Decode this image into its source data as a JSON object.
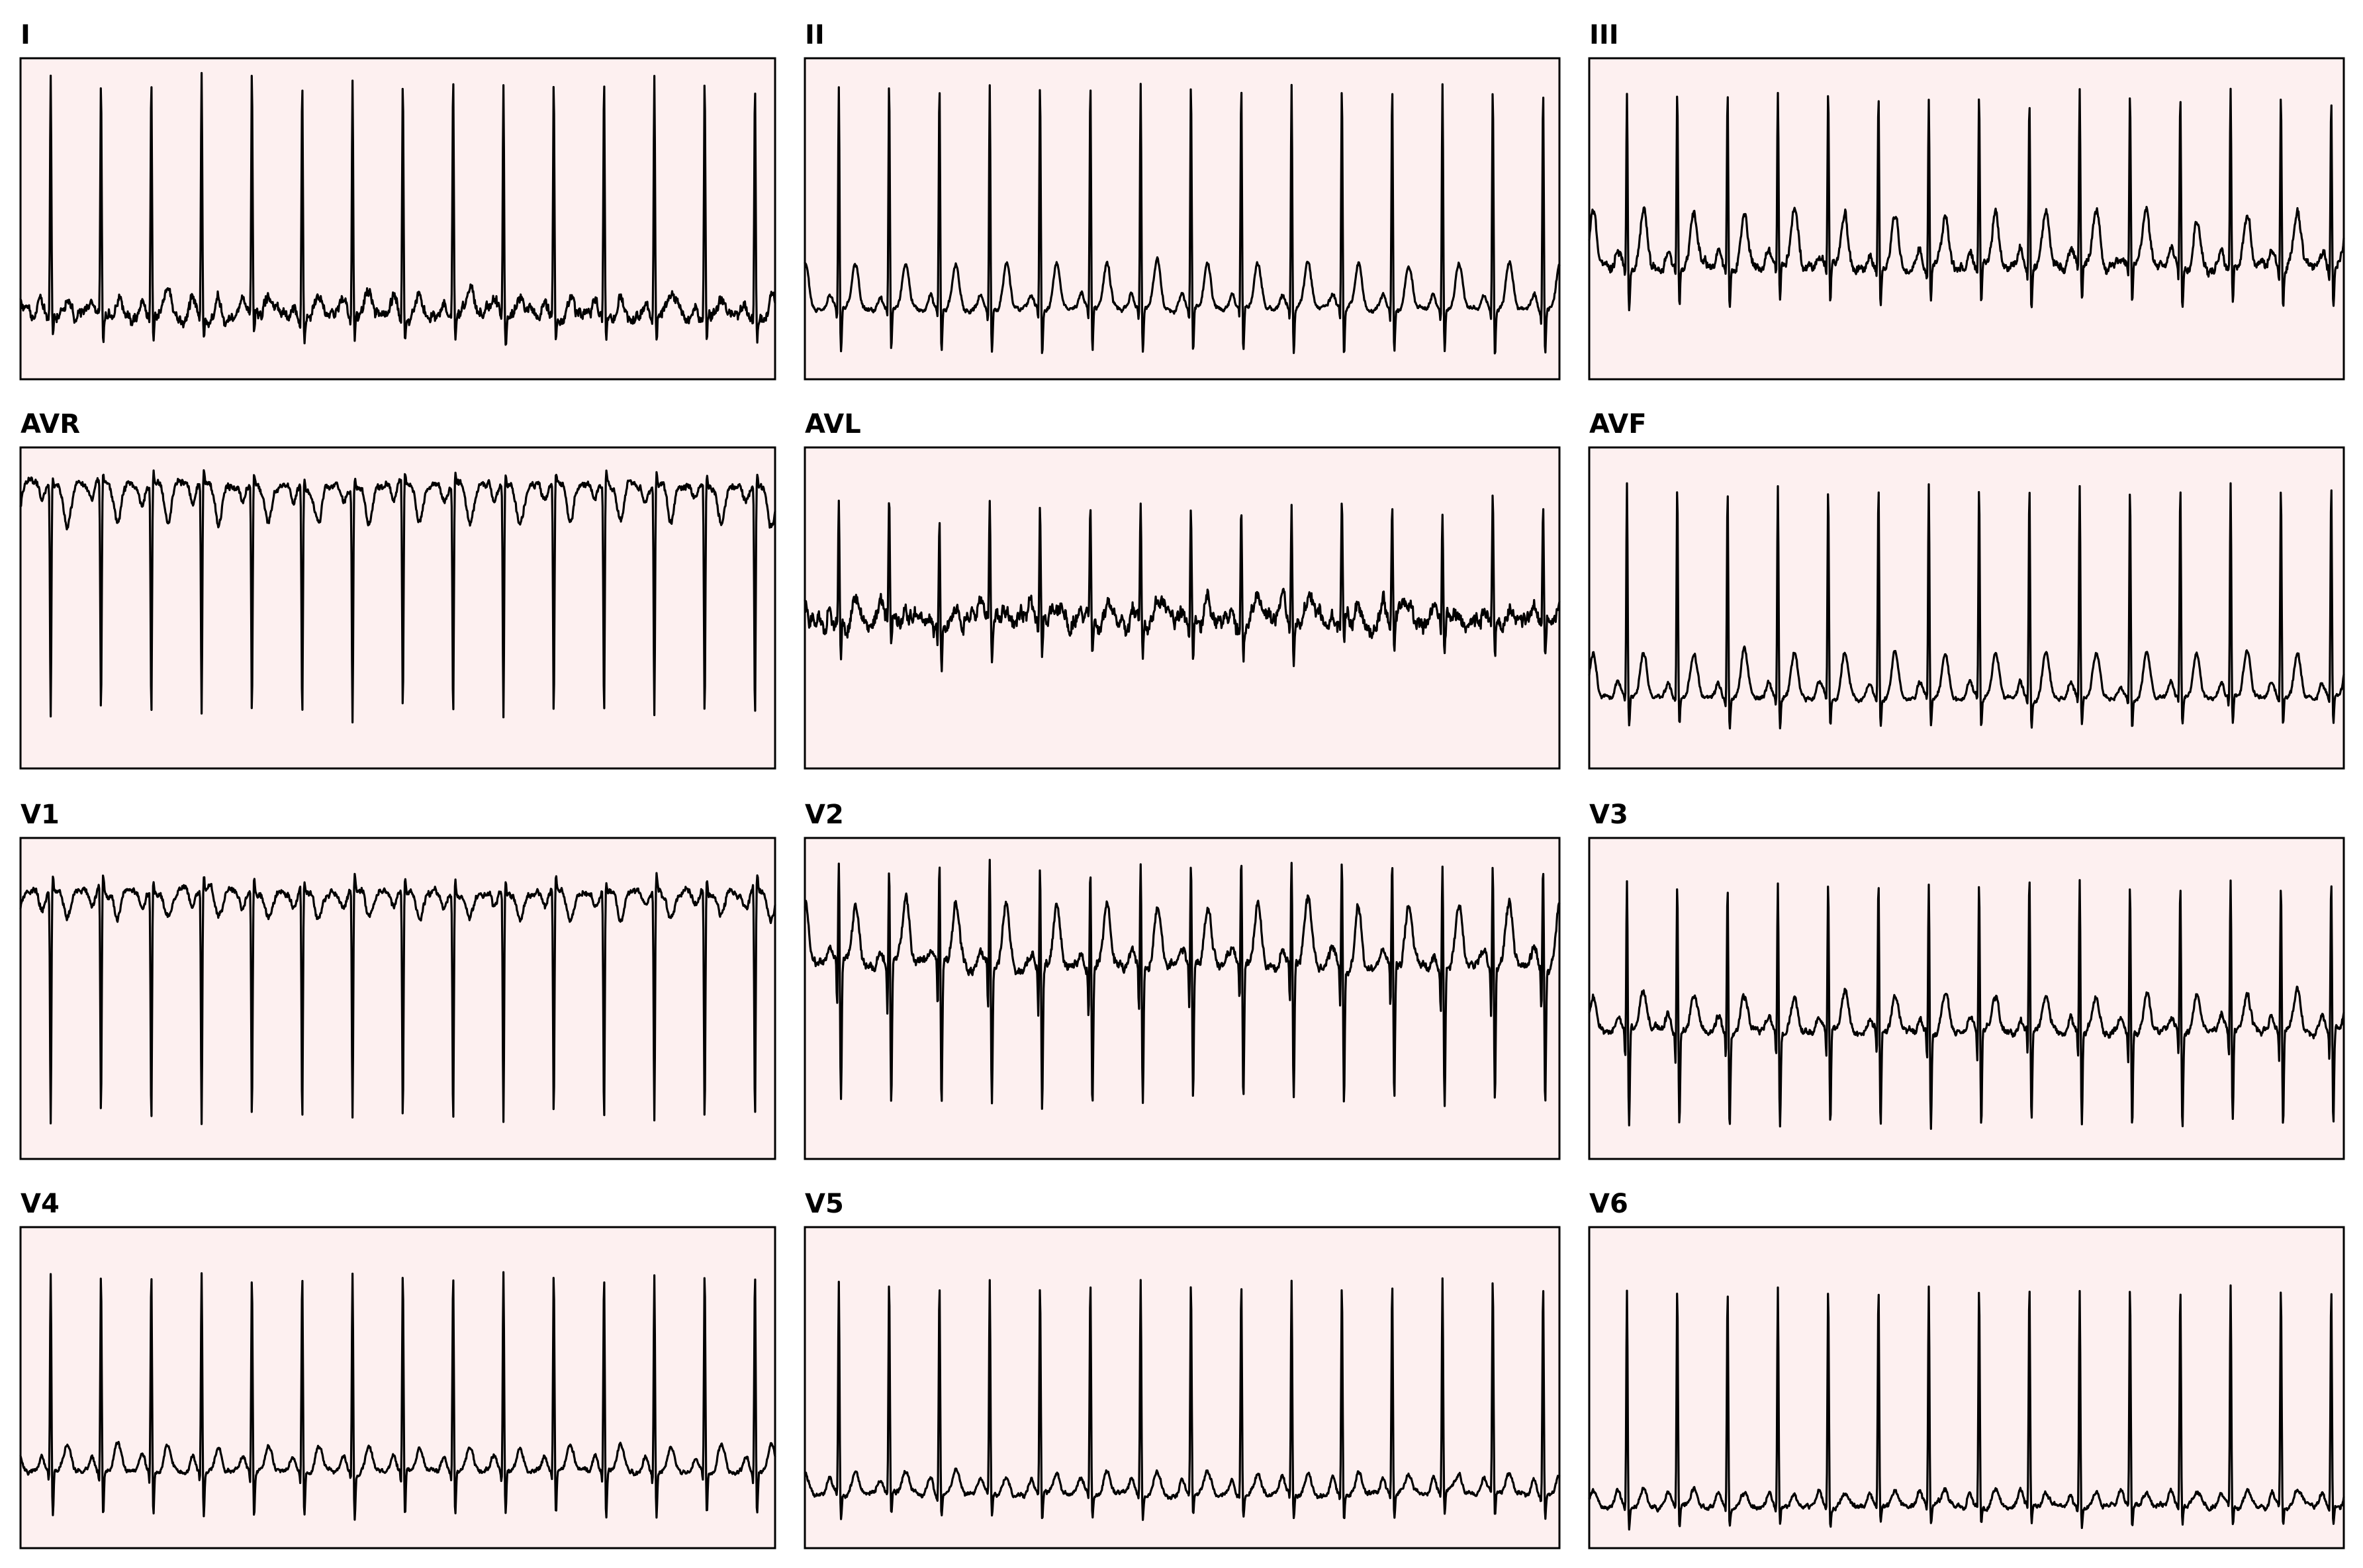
{
  "chart_data": {
    "type": "line",
    "layout": "4 rows x 3 columns",
    "grid": false,
    "background": "#fdf0f0",
    "trace_color": "#000000",
    "leads": [
      {
        "name": "I",
        "beats": 15,
        "r_amp": 0.95,
        "s_amp": 0.1,
        "t_amp": 0.08,
        "baseline": 0.2,
        "noise": 0.05,
        "inverted": false
      },
      {
        "name": "II",
        "beats": 15,
        "r_amp": 0.9,
        "s_amp": 0.18,
        "t_amp": 0.18,
        "baseline": 0.22,
        "noise": 0.02,
        "inverted": false
      },
      {
        "name": "III",
        "beats": 15,
        "r_amp": 0.7,
        "s_amp": 0.15,
        "t_amp": 0.22,
        "baseline": 0.35,
        "noise": 0.04,
        "inverted": false
      },
      {
        "name": "AVR",
        "beats": 15,
        "r_amp": 0.92,
        "s_amp": 0.05,
        "t_amp": 0.15,
        "baseline": 0.88,
        "noise": 0.03,
        "inverted": true
      },
      {
        "name": "AVL",
        "beats": 15,
        "r_amp": 0.45,
        "s_amp": 0.15,
        "t_amp": 0.06,
        "baseline": 0.46,
        "noise": 0.07,
        "inverted": false
      },
      {
        "name": "AVF",
        "beats": 15,
        "r_amp": 0.85,
        "s_amp": 0.12,
        "t_amp": 0.18,
        "baseline": 0.22,
        "noise": 0.02,
        "inverted": false
      },
      {
        "name": "V1",
        "beats": 15,
        "r_amp": 0.92,
        "s_amp": 0.06,
        "t_amp": 0.1,
        "baseline": 0.83,
        "noise": 0.03,
        "inverted": true
      },
      {
        "name": "V2",
        "beats": 15,
        "r_amp": 0.42,
        "s_amp": 0.55,
        "t_amp": 0.25,
        "baseline": 0.6,
        "noise": 0.04,
        "inverted": false
      },
      {
        "name": "V3",
        "beats": 15,
        "r_amp": 0.6,
        "s_amp": 0.38,
        "t_amp": 0.14,
        "baseline": 0.4,
        "noise": 0.03,
        "inverted": false
      },
      {
        "name": "V4",
        "beats": 15,
        "r_amp": 0.8,
        "s_amp": 0.18,
        "t_amp": 0.1,
        "baseline": 0.24,
        "noise": 0.02,
        "inverted": false
      },
      {
        "name": "V5",
        "beats": 15,
        "r_amp": 0.85,
        "s_amp": 0.1,
        "t_amp": 0.08,
        "baseline": 0.17,
        "noise": 0.02,
        "inverted": false
      },
      {
        "name": "V6",
        "beats": 15,
        "r_amp": 0.88,
        "s_amp": 0.08,
        "t_amp": 0.06,
        "baseline": 0.13,
        "noise": 0.02,
        "inverted": false
      }
    ]
  }
}
